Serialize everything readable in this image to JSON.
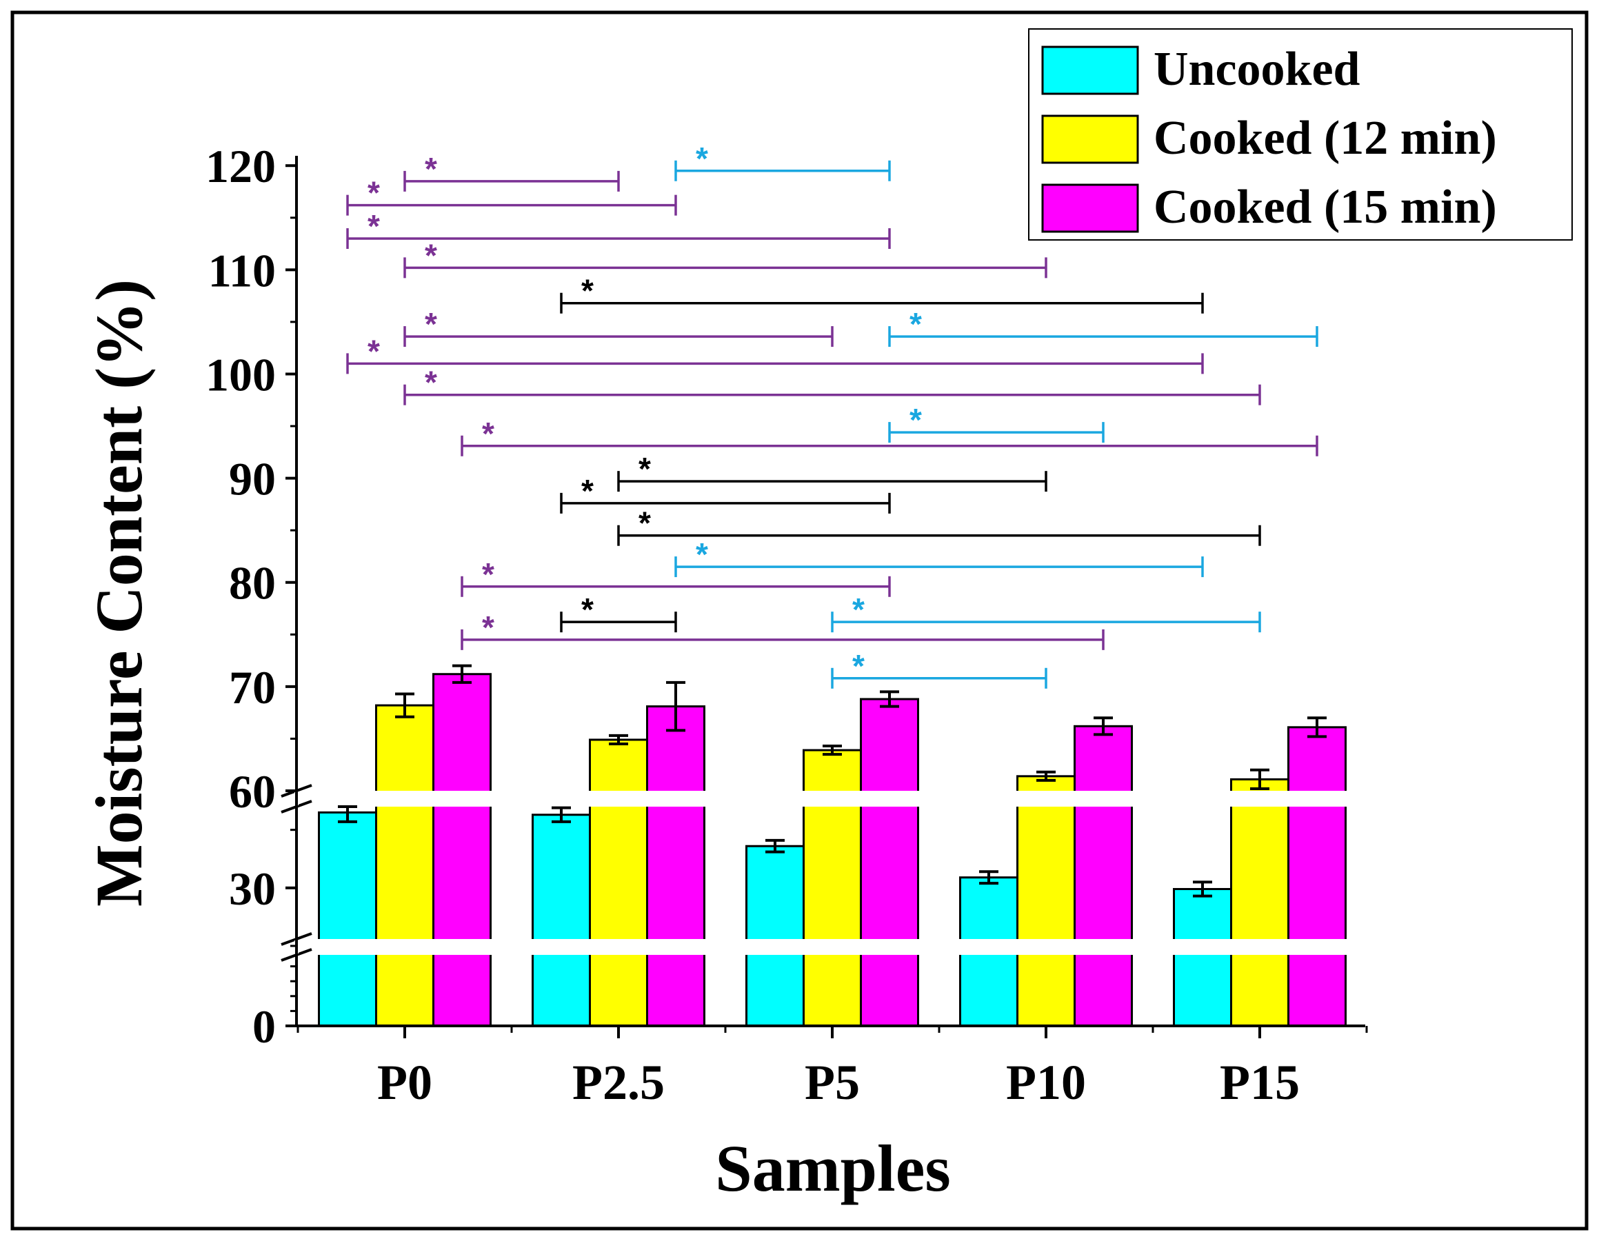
{
  "chart_data": {
    "type": "bar",
    "title": "",
    "xlabel": "Samples",
    "ylabel": "Moisture Content (%)",
    "categories": [
      "P0",
      "P2.5",
      "P5",
      "P10",
      "P15"
    ],
    "series": [
      {
        "name": "Uncooked",
        "color": "#00FFFF",
        "values": [
          36.5,
          36.3,
          33.6,
          30.9,
          29.9
        ],
        "errors": [
          0.8,
          0.6,
          0.5,
          0.5,
          0.6
        ]
      },
      {
        "name": "Cooked (12 min)",
        "color": "#FFFF00",
        "values": [
          68.2,
          64.9,
          63.9,
          61.4,
          61.1
        ],
        "errors": [
          1.1,
          0.4,
          0.4,
          0.4,
          0.9
        ]
      },
      {
        "name": "Cooked (15 min)",
        "color": "#FF00FF",
        "values": [
          71.2,
          68.1,
          68.8,
          66.2,
          66.1
        ],
        "errors": [
          0.8,
          2.3,
          0.7,
          0.8,
          0.9
        ]
      }
    ],
    "y_axis": {
      "segments": [
        {
          "range": [
            0,
            25
          ],
          "ticks": [
            0
          ]
        },
        {
          "range": [
            25,
            37
          ],
          "ticks": [
            30
          ]
        },
        {
          "range": [
            60,
            122
          ],
          "ticks": [
            60,
            70,
            80,
            90,
            100,
            110,
            120
          ]
        }
      ],
      "tick_labels": [
        "0",
        "30",
        "60",
        "70",
        "80",
        "90",
        "100",
        "110",
        "120"
      ]
    },
    "significance": [
      {
        "y": 118.5,
        "c1": 0,
        "s1": 1,
        "c2": 1,
        "s2": 1,
        "color": "purple"
      },
      {
        "y": 119.5,
        "c1": 1,
        "s1": 2,
        "c2": 2,
        "s2": 2,
        "color": "blue"
      },
      {
        "y": 116.2,
        "c1": 0,
        "s1": 0,
        "c2": 1,
        "s2": 2,
        "color": "purple"
      },
      {
        "y": 113.0,
        "c1": 0,
        "s1": 0,
        "c2": 2,
        "s2": 2,
        "color": "purple"
      },
      {
        "y": 110.2,
        "c1": 0,
        "s1": 1,
        "c2": 3,
        "s2": 1,
        "color": "purple"
      },
      {
        "y": 106.8,
        "c1": 1,
        "s1": 0,
        "c2": 4,
        "s2": 0,
        "color": "black"
      },
      {
        "y": 103.6,
        "c1": 0,
        "s1": 1,
        "c2": 2,
        "s2": 1,
        "color": "purple"
      },
      {
        "y": 103.6,
        "c1": 2,
        "s1": 2,
        "c2": 4,
        "s2": 2,
        "color": "blue"
      },
      {
        "y": 101.0,
        "c1": 0,
        "s1": 0,
        "c2": 4,
        "s2": 0,
        "color": "purple"
      },
      {
        "y": 98.0,
        "c1": 0,
        "s1": 1,
        "c2": 4,
        "s2": 1,
        "color": "purple"
      },
      {
        "y": 94.4,
        "c1": 2,
        "s1": 2,
        "c2": 3,
        "s2": 2,
        "color": "blue"
      },
      {
        "y": 93.1,
        "c1": 0,
        "s1": 2,
        "c2": 4,
        "s2": 2,
        "color": "purple"
      },
      {
        "y": 89.7,
        "c1": 1,
        "s1": 1,
        "c2": 3,
        "s2": 1,
        "color": "black"
      },
      {
        "y": 87.6,
        "c1": 1,
        "s1": 0,
        "c2": 2,
        "s2": 2,
        "color": "black"
      },
      {
        "y": 84.5,
        "c1": 1,
        "s1": 1,
        "c2": 4,
        "s2": 1,
        "color": "black"
      },
      {
        "y": 81.5,
        "c1": 1,
        "s1": 2,
        "c2": 4,
        "s2": 0,
        "color": "blue"
      },
      {
        "y": 79.6,
        "c1": 0,
        "s1": 2,
        "c2": 2,
        "s2": 2,
        "color": "purple"
      },
      {
        "y": 76.2,
        "c1": 1,
        "s1": 0,
        "c2": 1,
        "s2": 2,
        "color": "black"
      },
      {
        "y": 76.2,
        "c1": 2,
        "s1": 1,
        "c2": 4,
        "s2": 1,
        "color": "blue"
      },
      {
        "y": 74.5,
        "c1": 0,
        "s1": 2,
        "c2": 3,
        "s2": 2,
        "color": "purple"
      },
      {
        "y": 70.8,
        "c1": 2,
        "s1": 1,
        "c2": 3,
        "s2": 1,
        "color": "blue"
      }
    ],
    "significance_symbol": "*",
    "significance_colors": {
      "purple": "#7B3294",
      "blue": "#1AA7E0",
      "black": "#000000"
    },
    "legend": "top-right"
  }
}
